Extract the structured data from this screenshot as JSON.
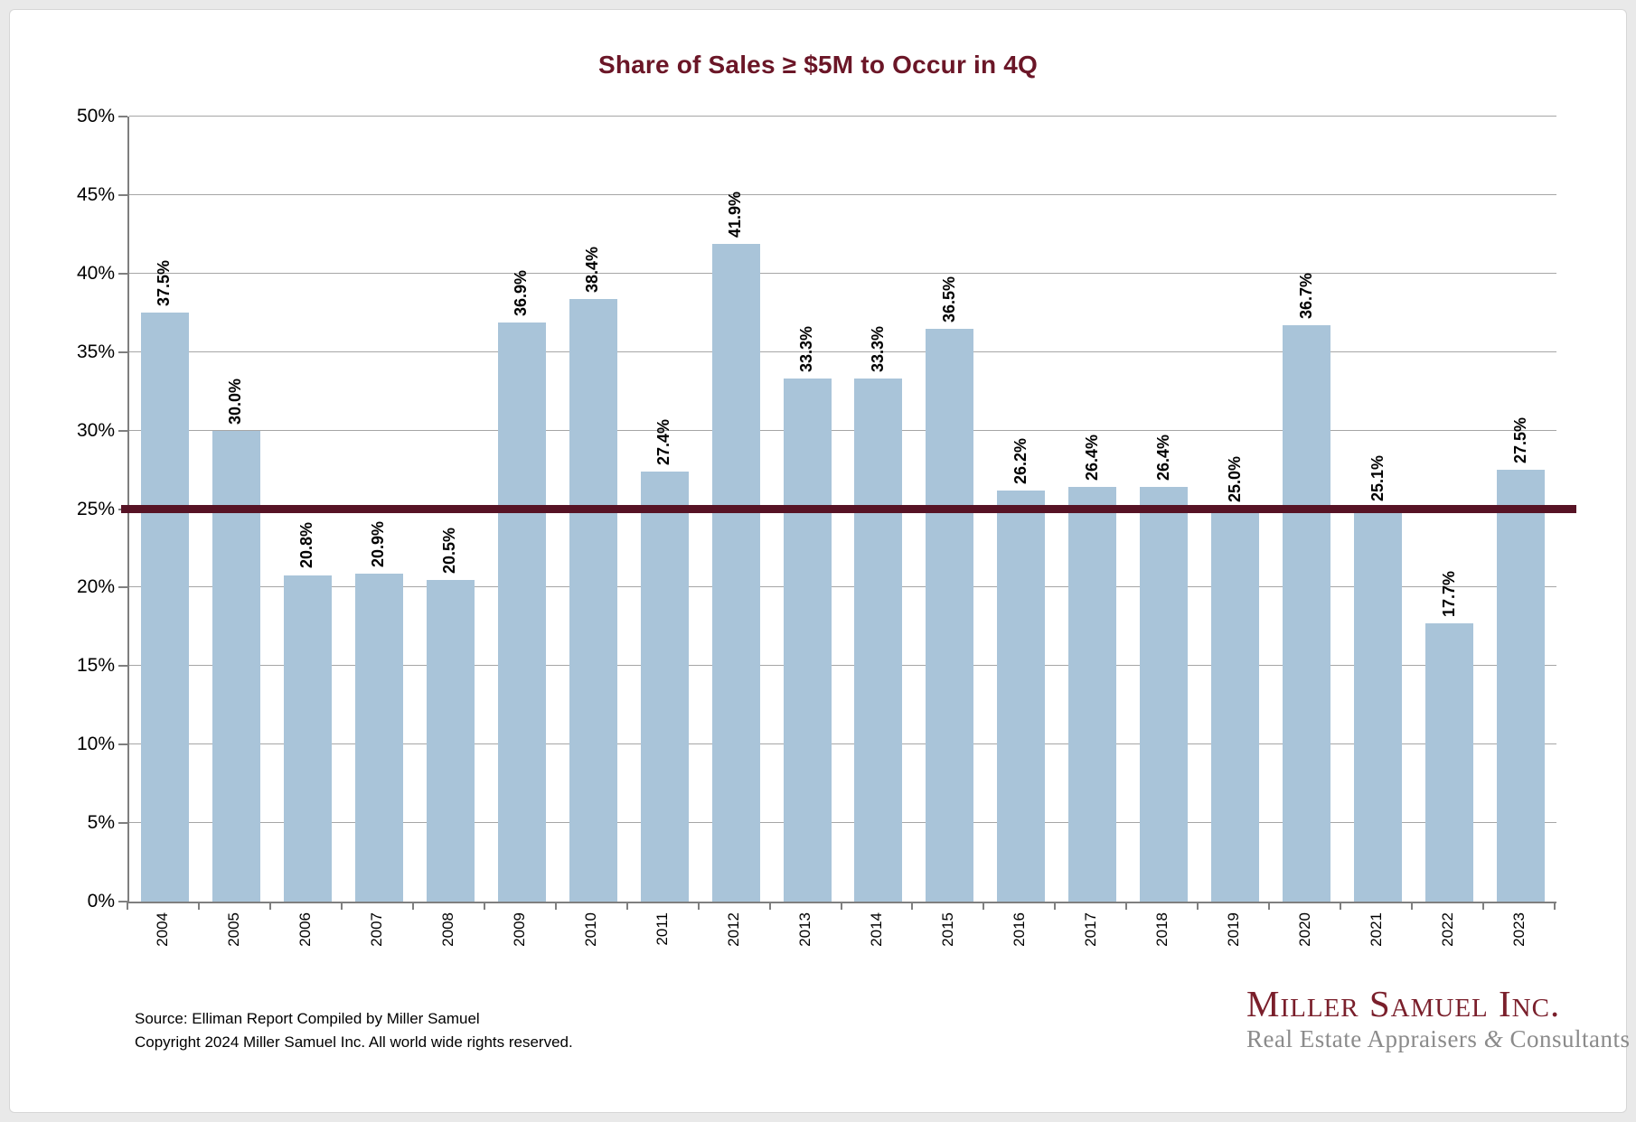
{
  "title": "Share of Sales ≥ $5M to Occur in 4Q",
  "chart_data": {
    "type": "bar",
    "title": "Share of Sales ≥ $5M to Occur in 4Q",
    "categories": [
      "2004",
      "2005",
      "2006",
      "2007",
      "2008",
      "2009",
      "2010",
      "2011",
      "2012",
      "2013",
      "2014",
      "2015",
      "2016",
      "2017",
      "2018",
      "2019",
      "2020",
      "2021",
      "2022",
      "2023"
    ],
    "values": [
      37.5,
      30.0,
      20.8,
      20.9,
      20.5,
      36.9,
      38.4,
      27.4,
      41.9,
      33.3,
      33.3,
      36.5,
      26.2,
      26.4,
      26.4,
      25.0,
      36.7,
      25.1,
      17.7,
      27.5
    ],
    "value_labels": [
      "37.5%",
      "30.0%",
      "20.8%",
      "20.9%",
      "20.5%",
      "36.9%",
      "38.4%",
      "27.4%",
      "41.9%",
      "33.3%",
      "33.3%",
      "36.5%",
      "26.2%",
      "26.4%",
      "26.4%",
      "25.0%",
      "36.7%",
      "25.1%",
      "17.7%",
      "27.5%"
    ],
    "xlabel": "",
    "ylabel": "",
    "ylim": [
      0,
      50
    ],
    "ytick_step": 5,
    "ytick_labels": [
      "0%",
      "5%",
      "10%",
      "15%",
      "20%",
      "25%",
      "30%",
      "35%",
      "40%",
      "45%",
      "50%"
    ],
    "grid": true,
    "legend_position": "none",
    "bar_color": "#a9c4d9",
    "reference_line": {
      "value": 25,
      "color": "#571325"
    }
  },
  "footer": {
    "source_line": "Source: Elliman Report Compiled by Miller Samuel",
    "copyright_line": "Copyright 2024 Miller Samuel Inc.  All world wide rights reserved."
  },
  "logo": {
    "name": "Miller Samuel Inc.",
    "tagline_left": "Real Estate Appraisers",
    "tagline_amp": "&",
    "tagline_right": "Consultants",
    "name_color": "#7a1f2b",
    "tagline_color": "#8b8b8b"
  },
  "colors": {
    "title": "#6b1627",
    "bar": "#a9c4d9",
    "reference_line": "#571325",
    "gridline": "#a6a6a6",
    "axis": "#7f7f7f"
  }
}
